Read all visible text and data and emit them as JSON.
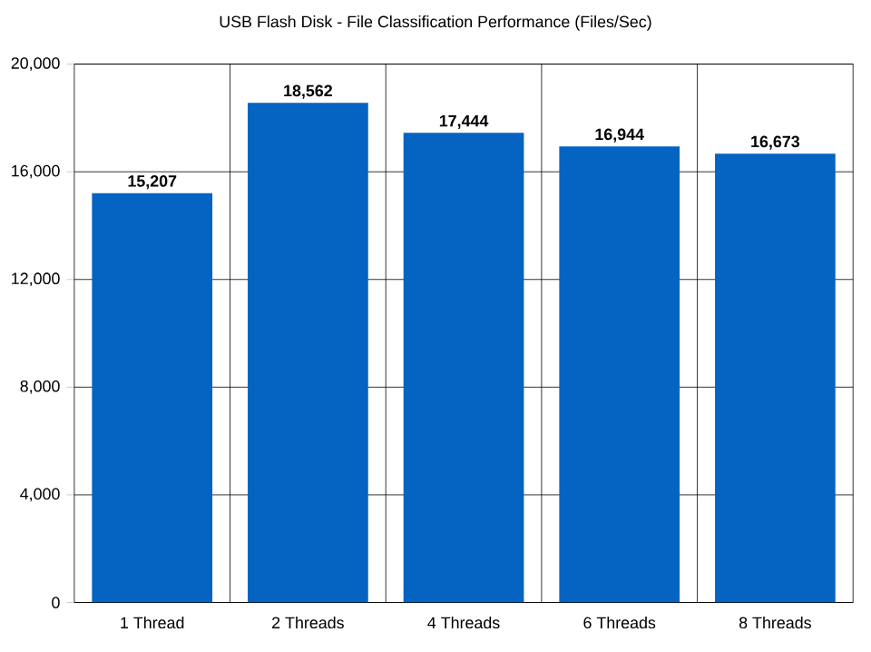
{
  "chart_data": {
    "type": "bar",
    "title": "USB Flash Disk - File Classification Performance (Files/Sec)",
    "categories": [
      "1 Thread",
      "2 Threads",
      "4 Threads",
      "6 Threads",
      "8 Threads"
    ],
    "values": [
      15207,
      18562,
      17444,
      16944,
      16673
    ],
    "color": "#0563c1",
    "ylim": [
      0,
      20000
    ],
    "yticks": [
      {
        "value": 0,
        "label": "0"
      },
      {
        "value": 4000,
        "label": "4,000"
      },
      {
        "value": 8000,
        "label": "8,000"
      },
      {
        "value": 12000,
        "label": "12,000"
      },
      {
        "value": 16000,
        "label": "16,000"
      },
      {
        "value": 20000,
        "label": "20,000"
      }
    ],
    "value_labels": [
      "15,207",
      "18,562",
      "17,444",
      "16,944",
      "16,673"
    ],
    "grid": true
  }
}
